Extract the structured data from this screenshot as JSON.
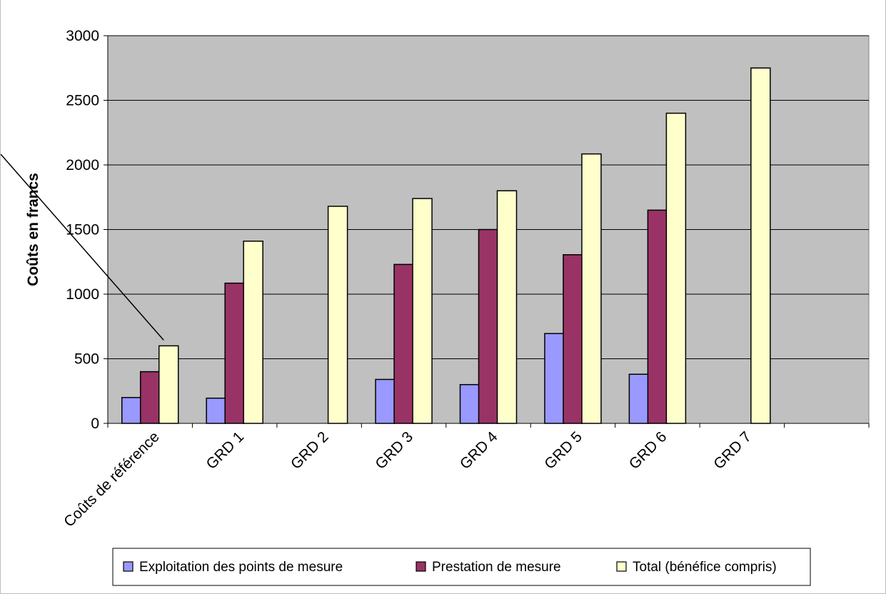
{
  "chart_data": {
    "type": "bar",
    "categories": [
      "Coûts de référence",
      "GRD 1",
      "GRD 2",
      "GRD 3",
      "GRD 4",
      "GRD 5",
      "GRD 6",
      "GRD 7"
    ],
    "category_slots": 9,
    "series": [
      {
        "name": "Exploitation des points de mesure",
        "color": "#9999ff",
        "values": [
          200,
          195,
          null,
          340,
          300,
          695,
          380,
          null
        ]
      },
      {
        "name": "Prestation de mesure",
        "color": "#993366",
        "values": [
          400,
          1085,
          null,
          1230,
          1500,
          1305,
          1650,
          null
        ]
      },
      {
        "name": "Total (bénéfice compris)",
        "color": "#ffffcc",
        "values": [
          600,
          1410,
          1680,
          1740,
          1800,
          2085,
          2400,
          2750
        ]
      }
    ],
    "title": "",
    "xlabel": "",
    "ylabel": "Coûts en francs",
    "ylim": [
      0,
      3000
    ],
    "yticks": [
      0,
      500,
      1000,
      1500,
      2000,
      2500,
      3000
    ],
    "grid": true,
    "plot_background": "#c0c0c0",
    "legend_position": "bottom"
  }
}
